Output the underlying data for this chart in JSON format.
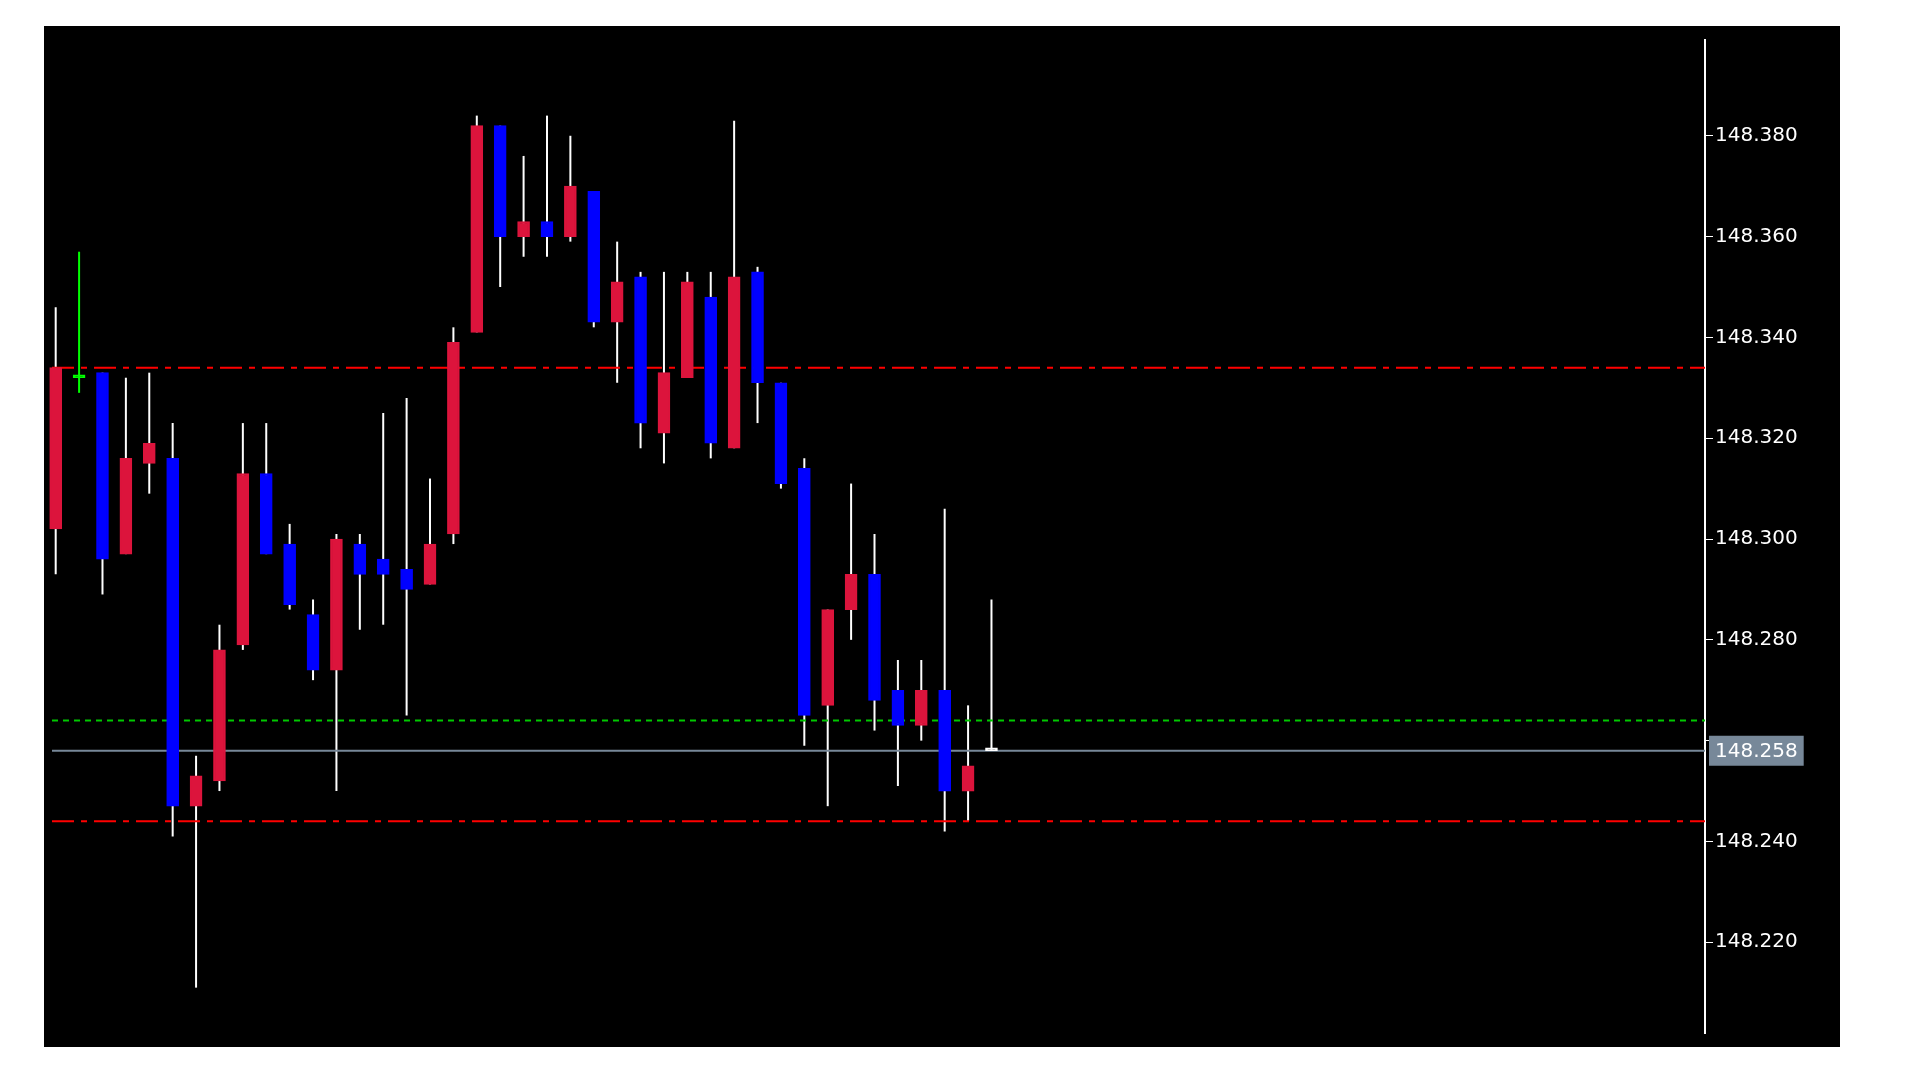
{
  "chart_data": {
    "type": "candlestick",
    "categories": [
      null,
      null,
      null,
      null,
      null,
      null,
      null,
      null,
      null,
      null,
      null,
      null,
      null,
      null,
      null,
      null,
      null,
      null,
      null,
      null,
      null,
      null,
      null,
      null,
      null,
      null,
      null,
      null,
      null,
      null,
      null,
      null,
      null,
      null,
      null,
      null,
      null,
      null,
      null,
      null,
      null,
      null,
      null,
      null,
      null,
      null,
      null,
      null,
      null,
      null,
      null,
      null,
      null,
      null,
      null,
      null,
      null,
      null,
      null,
      null,
      null,
      null,
      null,
      null,
      null,
      null,
      null,
      null,
      null,
      null,
      null
    ],
    "ohlc": [
      [
        148.302,
        148.346,
        148.293,
        148.334
      ],
      [
        148.332,
        148.357,
        148.329,
        148.332
      ],
      [
        148.333,
        148.333,
        148.289,
        148.296
      ],
      [
        148.297,
        148.332,
        148.297,
        148.316
      ],
      [
        148.315,
        148.333,
        148.309,
        148.319
      ],
      [
        148.316,
        148.323,
        148.241,
        148.247
      ],
      [
        148.247,
        148.257,
        148.211,
        148.253
      ],
      [
        148.252,
        148.283,
        148.25,
        148.278
      ],
      [
        148.279,
        148.323,
        148.278,
        148.313
      ],
      [
        148.313,
        148.323,
        148.297,
        148.297
      ],
      [
        148.299,
        148.303,
        148.286,
        148.287
      ],
      [
        148.285,
        148.288,
        148.272,
        148.274
      ],
      [
        148.274,
        148.301,
        148.25,
        148.3
      ],
      [
        148.299,
        148.301,
        148.282,
        148.293
      ],
      [
        148.296,
        148.325,
        148.283,
        148.293
      ],
      [
        148.294,
        148.328,
        148.265,
        148.29
      ],
      [
        148.291,
        148.312,
        148.291,
        148.299
      ],
      [
        148.301,
        148.342,
        148.299,
        148.339
      ],
      [
        148.341,
        148.384,
        148.341,
        148.382
      ],
      [
        148.382,
        148.382,
        148.35,
        148.36
      ],
      [
        148.36,
        148.376,
        148.356,
        148.363
      ],
      [
        148.363,
        148.384,
        148.356,
        148.36
      ],
      [
        148.36,
        148.38,
        148.359,
        148.37
      ],
      [
        148.369,
        148.369,
        148.342,
        148.343
      ],
      [
        148.343,
        148.359,
        148.331,
        148.351
      ],
      [
        148.352,
        148.353,
        148.318,
        148.323
      ],
      [
        148.321,
        148.353,
        148.315,
        148.333
      ],
      [
        148.332,
        148.353,
        148.332,
        148.351
      ],
      [
        148.348,
        148.353,
        148.316,
        148.319
      ],
      [
        148.318,
        148.383,
        148.318,
        148.352
      ],
      [
        148.353,
        148.354,
        148.323,
        148.331
      ],
      [
        148.331,
        148.331,
        148.31,
        148.311
      ],
      [
        148.314,
        148.316,
        148.259,
        148.265
      ],
      [
        148.267,
        148.286,
        148.247,
        148.286
      ],
      [
        148.286,
        148.311,
        148.28,
        148.293
      ],
      [
        148.293,
        148.301,
        148.262,
        148.268
      ],
      [
        148.27,
        148.276,
        148.251,
        148.263
      ],
      [
        148.263,
        148.276,
        148.26,
        148.27
      ],
      [
        148.27,
        148.306,
        148.242,
        148.25
      ],
      [
        148.25,
        148.267,
        148.244,
        148.255
      ],
      [
        148.258,
        148.288,
        148.258,
        148.258
      ],
      null,
      null,
      null,
      null,
      null,
      null,
      null,
      null,
      null,
      null,
      null,
      null,
      null,
      null,
      null,
      null,
      null,
      null,
      null,
      null,
      null,
      null,
      null,
      null,
      null,
      null,
      null,
      null,
      null,
      null
    ],
    "colors": [
      "#dc143c",
      "#00ff00",
      "#0000ff",
      "#dc143c",
      "#dc143c",
      "#0000ff",
      "#dc143c",
      "#dc143c",
      "#dc143c",
      "#0000ff",
      "#0000ff",
      "#0000ff",
      "#dc143c",
      "#0000ff",
      "#0000ff",
      "#0000ff",
      "#dc143c",
      "#dc143c",
      "#dc143c",
      "#0000ff",
      "#dc143c",
      "#0000ff",
      "#dc143c",
      "#0000ff",
      "#dc143c",
      "#0000ff",
      "#dc143c",
      "#dc143c",
      "#0000ff",
      "#dc143c",
      "#0000ff",
      "#0000ff",
      "#0000ff",
      "#dc143c",
      "#dc143c",
      "#0000ff",
      "#0000ff",
      "#dc143c",
      "#0000ff",
      "#dc143c",
      "#ffffff",
      null,
      null,
      null,
      null,
      null,
      null,
      null,
      null,
      null,
      null,
      null,
      null,
      null,
      null,
      null,
      null,
      null,
      null,
      null,
      null,
      null,
      null,
      null,
      null,
      null,
      null,
      null,
      null,
      null,
      null
    ],
    "ylim": [
      148.202,
      148.399
    ],
    "yticks": [
      {
        "value": 148.22,
        "label": "148.220"
      },
      {
        "value": 148.24,
        "label": "148.240"
      },
      {
        "value": 148.26,
        "label": null
      },
      {
        "value": 148.28,
        "label": "148.280"
      },
      {
        "value": 148.3,
        "label": "148.300"
      },
      {
        "value": 148.32,
        "label": "148.320"
      },
      {
        "value": 148.34,
        "label": "148.340"
      },
      {
        "value": 148.36,
        "label": "148.360"
      },
      {
        "value": 148.38,
        "label": "148.380"
      }
    ],
    "ref_lines": [
      {
        "axis": "y",
        "value": 148.334,
        "label": null,
        "color": "#ff0000",
        "line_style": "dashed"
      },
      {
        "axis": "y",
        "value": 148.244,
        "label": null,
        "color": "#ff0000",
        "line_style": "dashed"
      },
      {
        "axis": "y",
        "value": 148.264,
        "label": null,
        "color": "#00c800",
        "line_style": "dotted"
      },
      {
        "axis": "y",
        "value": 148.258,
        "label": "148.258",
        "color": "#778899",
        "line_style": "solid"
      }
    ],
    "grid": false,
    "legend": false,
    "tick_labels": "y"
  }
}
